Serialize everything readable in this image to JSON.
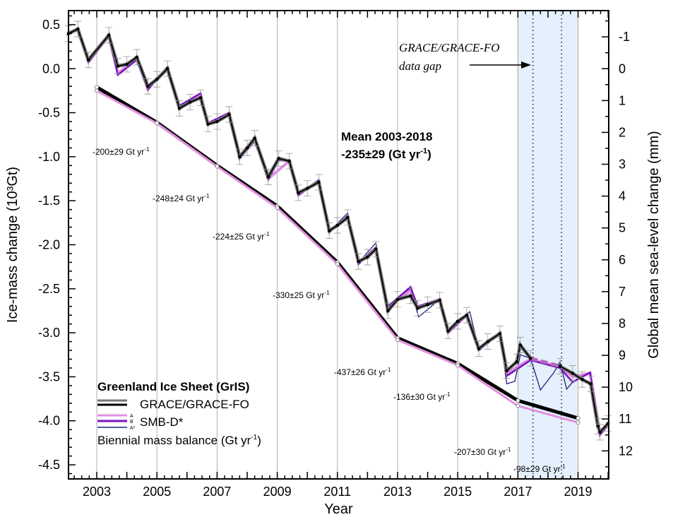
{
  "chart_data": {
    "type": "line",
    "title": "",
    "xlabel": "Year",
    "ylabel": "Ice-mass change (10³Gt)",
    "ylabel_right": "Global mean sea-level change (mm)",
    "xlim": [
      2002.06,
      2020.02
    ],
    "ylim": [
      -4.66,
      0.66
    ],
    "ylim_right_mm": [
      12.9,
      -1.8
    ],
    "x_ticks": [
      2003,
      2005,
      2007,
      2009,
      2011,
      2013,
      2015,
      2017,
      2019
    ],
    "x_tick_labels": [
      "2003",
      "2005",
      "2007",
      "2009",
      "2011",
      "2013",
      "2015",
      "2017",
      "2019"
    ],
    "y_ticks": [
      0.5,
      0.0,
      -0.5,
      -1.0,
      -1.5,
      -2.0,
      -2.5,
      -3.0,
      -3.5,
      -4.0,
      -4.5
    ],
    "y_tick_labels": [
      "0.5",
      "0.0",
      "-0.5",
      "-1.0",
      "-1.5",
      "-2.0",
      "-2.5",
      "-3.0",
      "-3.5",
      "-4.0",
      "-4.5"
    ],
    "y_right_ticks": [
      -1,
      0,
      1,
      2,
      3,
      4,
      5,
      6,
      7,
      8,
      9,
      10,
      11,
      12
    ],
    "y_right_tick_labels": [
      "-1",
      "0",
      "1",
      "2",
      "3",
      "4",
      "5",
      "6",
      "7",
      "8",
      "9",
      "10",
      "11",
      "12"
    ],
    "grid": "vertical lines at labelled years",
    "gap_region": {
      "from": 2017.0,
      "to": 2019.0,
      "dotted_lines": [
        2017.5,
        2018.45
      ],
      "color": "#e4f0fc"
    },
    "legend": {
      "placement": "bottom-left",
      "title": "Greenland Ice Sheet (GrIS)",
      "grace_label": "GRACE/GRACE-FO",
      "smb_label": "SMB-D*",
      "smb_variants": [
        "A",
        "B",
        "A*"
      ],
      "biennial_label": "Biennial mass balance (Gt yr",
      "biennial_sup": "-1",
      "biennial_close": ")"
    },
    "annotations": {
      "mean_line1": "Mean 2003-2018",
      "mean_line2": "-235±29 (Gt yr",
      "mean_sup": "-1",
      "mean_close": ")",
      "gap_line1": "GRACE/GRACE-FO",
      "gap_line2": "data gap"
    },
    "series": [
      {
        "name": "GRACE/GRACE-FO",
        "color": "#000000",
        "halo": "#777777",
        "points": [
          [
            2002.06,
            0.4
          ],
          [
            2002.37,
            0.45
          ],
          [
            2002.72,
            0.1
          ],
          [
            2003.4,
            0.38
          ],
          [
            2003.7,
            0.03
          ],
          [
            2004.0,
            0.05
          ],
          [
            2004.33,
            0.13
          ],
          [
            2004.7,
            -0.2
          ],
          [
            2005.0,
            -0.12
          ],
          [
            2005.35,
            0.0
          ],
          [
            2005.75,
            -0.45
          ],
          [
            2006.1,
            -0.38
          ],
          [
            2006.45,
            -0.33
          ],
          [
            2006.7,
            -0.63
          ],
          [
            2007.0,
            -0.6
          ],
          [
            2007.4,
            -0.52
          ],
          [
            2007.75,
            -1.0
          ],
          [
            2008.0,
            -0.9
          ],
          [
            2008.25,
            -0.79
          ],
          [
            2008.7,
            -1.23
          ],
          [
            2009.05,
            -1.02
          ],
          [
            2009.4,
            -1.05
          ],
          [
            2009.7,
            -1.41
          ],
          [
            2010.0,
            -1.36
          ],
          [
            2010.38,
            -1.29
          ],
          [
            2010.73,
            -1.84
          ],
          [
            2011.0,
            -1.78
          ],
          [
            2011.34,
            -1.69
          ],
          [
            2011.7,
            -2.19
          ],
          [
            2012.0,
            -2.14
          ],
          [
            2012.28,
            -2.05
          ],
          [
            2012.68,
            -2.75
          ],
          [
            2013.0,
            -2.62
          ],
          [
            2013.43,
            -2.58
          ],
          [
            2013.67,
            -2.72
          ],
          [
            2014.0,
            -2.68
          ],
          [
            2014.4,
            -2.63
          ],
          [
            2014.68,
            -2.98
          ],
          [
            2015.0,
            -2.87
          ],
          [
            2015.3,
            -2.8
          ],
          [
            2015.7,
            -3.18
          ],
          [
            2016.0,
            -3.1
          ],
          [
            2016.4,
            -3.01
          ],
          [
            2016.63,
            -3.43
          ],
          [
            2016.96,
            -3.33
          ],
          [
            2017.08,
            -3.14
          ],
          [
            2017.42,
            -3.29
          ]
        ],
        "points_after_gap": [
          [
            2018.4,
            -3.38
          ],
          [
            2018.82,
            -3.46
          ],
          [
            2019.14,
            -3.53
          ],
          [
            2019.42,
            -3.58
          ],
          [
            2019.66,
            -4.06
          ],
          [
            2019.73,
            -4.13
          ],
          [
            2020.0,
            -4.03
          ]
        ]
      },
      {
        "name": "SMB-D* B",
        "color": "#7a12c4",
        "points": [
          [
            2002.37,
            0.44
          ],
          [
            2002.72,
            0.07
          ],
          [
            2003.4,
            0.37
          ],
          [
            2003.7,
            -0.07
          ],
          [
            2004.33,
            0.1
          ],
          [
            2004.7,
            -0.24
          ],
          [
            2005.35,
            0.02
          ],
          [
            2005.75,
            -0.42
          ],
          [
            2006.45,
            -0.28
          ],
          [
            2006.7,
            -0.62
          ],
          [
            2007.4,
            -0.5
          ],
          [
            2007.75,
            -1.02
          ],
          [
            2008.25,
            -0.82
          ],
          [
            2008.7,
            -1.26
          ],
          [
            2009.05,
            -1.04
          ],
          [
            2009.4,
            -1.05
          ],
          [
            2009.7,
            -1.44
          ],
          [
            2010.38,
            -1.27
          ],
          [
            2010.73,
            -1.86
          ],
          [
            2011.34,
            -1.67
          ],
          [
            2011.7,
            -2.22
          ],
          [
            2012.28,
            -2.03
          ],
          [
            2012.68,
            -2.7
          ],
          [
            2013.43,
            -2.48
          ],
          [
            2013.67,
            -2.7
          ],
          [
            2014.4,
            -2.62
          ],
          [
            2014.68,
            -3.0
          ],
          [
            2015.3,
            -2.8
          ],
          [
            2015.7,
            -3.2
          ],
          [
            2016.4,
            -3.0
          ],
          [
            2016.63,
            -3.49
          ],
          [
            2017.42,
            -3.31
          ],
          [
            2018.4,
            -3.4
          ],
          [
            2018.82,
            -3.56
          ],
          [
            2019.4,
            -3.45
          ],
          [
            2019.73,
            -4.16
          ],
          [
            2020.0,
            -4.05
          ]
        ]
      },
      {
        "name": "SMB-D* A",
        "color": "#e38fe0",
        "points": [
          [
            2002.37,
            0.44
          ],
          [
            2002.72,
            0.09
          ],
          [
            2003.4,
            0.37
          ],
          [
            2003.7,
            -0.05
          ],
          [
            2004.33,
            0.11
          ],
          [
            2004.7,
            -0.22
          ],
          [
            2005.35,
            0.01
          ],
          [
            2005.75,
            -0.43
          ],
          [
            2006.45,
            -0.3
          ],
          [
            2006.7,
            -0.62
          ],
          [
            2007.4,
            -0.51
          ],
          [
            2007.75,
            -1.01
          ],
          [
            2008.25,
            -0.8
          ],
          [
            2008.7,
            -1.25
          ],
          [
            2009.4,
            -1.05
          ],
          [
            2009.7,
            -1.42
          ],
          [
            2010.38,
            -1.28
          ],
          [
            2010.73,
            -1.85
          ],
          [
            2011.34,
            -1.68
          ],
          [
            2011.7,
            -2.2
          ],
          [
            2012.28,
            -2.04
          ],
          [
            2012.68,
            -2.72
          ],
          [
            2013.43,
            -2.52
          ],
          [
            2013.67,
            -2.71
          ],
          [
            2014.4,
            -2.62
          ],
          [
            2014.68,
            -2.99
          ],
          [
            2015.3,
            -2.8
          ],
          [
            2015.7,
            -3.19
          ],
          [
            2016.4,
            -3.0
          ],
          [
            2016.63,
            -3.46
          ],
          [
            2017.42,
            -3.3
          ],
          [
            2018.4,
            -3.39
          ],
          [
            2018.82,
            -3.5
          ],
          [
            2019.4,
            -3.46
          ],
          [
            2019.73,
            -4.15
          ],
          [
            2020.0,
            -4.04
          ]
        ]
      },
      {
        "name": "SMB-D* A*",
        "color": "#1a237e",
        "points": [
          [
            2002.0,
            0.38
          ],
          [
            2002.37,
            0.45
          ],
          [
            2002.72,
            0.09
          ],
          [
            2003.4,
            0.38
          ],
          [
            2003.7,
            -0.04
          ],
          [
            2004.33,
            0.12
          ],
          [
            2004.7,
            -0.22
          ],
          [
            2005.35,
            0.01
          ],
          [
            2005.75,
            -0.43
          ],
          [
            2006.45,
            -0.3
          ],
          [
            2006.7,
            -0.62
          ],
          [
            2007.4,
            -0.51
          ],
          [
            2007.75,
            -1.01
          ],
          [
            2008.25,
            -0.8
          ],
          [
            2008.7,
            -1.25
          ],
          [
            2009.4,
            -1.05
          ],
          [
            2009.7,
            -1.42
          ],
          [
            2010.38,
            -1.26
          ],
          [
            2010.73,
            -1.85
          ],
          [
            2011.34,
            -1.64
          ],
          [
            2011.7,
            -2.2
          ],
          [
            2012.28,
            -1.98
          ],
          [
            2012.68,
            -2.72
          ],
          [
            2013.43,
            -2.5
          ],
          [
            2013.7,
            -2.82
          ],
          [
            2014.4,
            -2.62
          ],
          [
            2014.68,
            -2.99
          ],
          [
            2015.4,
            -2.76
          ],
          [
            2015.7,
            -3.19
          ],
          [
            2016.4,
            -3.0
          ],
          [
            2016.63,
            -3.58
          ],
          [
            2016.9,
            -3.55
          ],
          [
            2017.08,
            -3.25
          ],
          [
            2017.42,
            -3.29
          ],
          [
            2017.75,
            -3.65
          ],
          [
            2018.2,
            -3.45
          ],
          [
            2018.4,
            -3.33
          ],
          [
            2018.62,
            -3.64
          ],
          [
            2018.82,
            -3.56
          ],
          [
            2019.4,
            -3.46
          ],
          [
            2019.73,
            -4.15
          ],
          [
            2020.0,
            -4.05
          ]
        ]
      }
    ],
    "biennial": {
      "grace": {
        "color": "#000000",
        "points": [
          [
            2003,
            -0.21
          ],
          [
            2005,
            -0.61
          ],
          [
            2007,
            -1.1
          ],
          [
            2009,
            -1.56
          ],
          [
            2011,
            -2.2
          ],
          [
            2013,
            -3.06
          ],
          [
            2015,
            -3.35
          ],
          [
            2017,
            -3.77
          ],
          [
            2019,
            -3.97
          ]
        ]
      },
      "smb": {
        "color": "#e38fe0",
        "points": [
          [
            2003,
            -0.25
          ],
          [
            2005,
            -0.62
          ],
          [
            2007,
            -1.11
          ],
          [
            2009,
            -1.58
          ],
          [
            2011,
            -2.22
          ],
          [
            2013,
            -3.08
          ],
          [
            2015,
            -3.37
          ],
          [
            2017,
            -3.83
          ],
          [
            2019,
            -4.02
          ]
        ]
      },
      "rate_labels": [
        {
          "text": "-200±29 Gt yr",
          "sup": "-1"
        },
        {
          "text": "-248±24 Gt yr",
          "sup": "-1"
        },
        {
          "text": "-224±25 Gt yr",
          "sup": "-1"
        },
        {
          "text": "-330±25 Gt yr",
          "sup": "-1"
        },
        {
          "text": "-437±26 Gt yr",
          "sup": "-1"
        },
        {
          "text": "-136±30 Gt yr",
          "sup": "-1"
        },
        {
          "text": "-207±30 Gt yr",
          "sup": "-1"
        },
        {
          "text": "-98±29 Gt yr",
          "sup": "-1"
        }
      ]
    }
  }
}
